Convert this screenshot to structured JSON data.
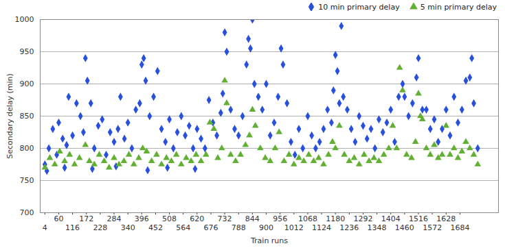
{
  "chart_data": {
    "type": "scatter",
    "x_label": "Train runs",
    "y_label": "Secondary delay (min)",
    "xlim": [
      -15,
      1840
    ],
    "xticks": [
      4,
      60,
      116,
      172,
      228,
      284,
      340,
      396,
      452,
      508,
      564,
      620,
      676,
      732,
      788,
      844,
      900,
      956,
      1012,
      1068,
      1124,
      1180,
      1236,
      1292,
      1348,
      1404,
      1460,
      1516,
      1572,
      1628,
      1684
    ],
    "ylim": [
      700,
      1000
    ],
    "yticks": [
      700,
      750,
      800,
      850,
      900,
      950,
      1000
    ],
    "grid": true,
    "legend": "top-right",
    "series": [
      {
        "name": "10 min primary delay",
        "color": "#2850dc",
        "marker": "diamond",
        "x": [
          4,
          12,
          20,
          36,
          52,
          60,
          76,
          84,
          92,
          100,
          116,
          132,
          148,
          160,
          168,
          176,
          190,
          196,
          204,
          220,
          236,
          252,
          268,
          284,
          292,
          300,
          310,
          326,
          340,
          356,
          372,
          388,
          396,
          404,
          412,
          420,
          428,
          444,
          460,
          476,
          492,
          500,
          508,
          524,
          540,
          556,
          572,
          588,
          604,
          612,
          620,
          636,
          652,
          668,
          684,
          700,
          716,
          724,
          732,
          740,
          756,
          772,
          788,
          804,
          820,
          828,
          836,
          844,
          852,
          868,
          884,
          900,
          916,
          932,
          948,
          960,
          968,
          984,
          1000,
          1016,
          1032,
          1048,
          1068,
          1084,
          1100,
          1116,
          1132,
          1148,
          1164,
          1172,
          1180,
          1188,
          1196,
          1204,
          1212,
          1228,
          1244,
          1260,
          1276,
          1292,
          1308,
          1324,
          1340,
          1356,
          1372,
          1388,
          1404,
          1420,
          1436,
          1452,
          1460,
          1476,
          1492,
          1508,
          1516,
          1532,
          1548,
          1564,
          1580,
          1596,
          1612,
          1628,
          1644,
          1660,
          1676,
          1692,
          1708,
          1724,
          1732,
          1740,
          1756
        ],
        "values": [
          775,
          765,
          800,
          830,
          790,
          840,
          815,
          770,
          805,
          880,
          820,
          870,
          850,
          825,
          940,
          905,
          870,
          768,
          800,
          835,
          845,
          790,
          825,
          810,
          772,
          830,
          880,
          815,
          840,
          800,
          860,
          870,
          930,
          940,
          905,
          766,
          850,
          880,
          920,
          830,
          810,
          770,
          845,
          800,
          825,
          850,
          820,
          835,
          800,
          768,
          830,
          815,
          800,
          875,
          840,
          820,
          855,
          885,
          980,
          950,
          860,
          830,
          820,
          850,
          930,
          970,
          955,
          1000,
          900,
          880,
          860,
          900,
          820,
          840,
          880,
          955,
          930,
          870,
          810,
          790,
          830,
          800,
          850,
          820,
          800,
          810,
          830,
          860,
          840,
          890,
          945,
          920,
          870,
          990,
          880,
          860,
          830,
          810,
          850,
          835,
          815,
          830,
          800,
          845,
          825,
          840,
          860,
          810,
          880,
          900,
          880,
          850,
          870,
          910,
          940,
          860,
          860,
          830,
          845,
          810,
          830,
          860,
          820,
          880,
          840,
          860,
          905,
          910,
          940,
          870,
          800
        ]
      },
      {
        "name": "5 min primary delay",
        "color": "#62b033",
        "marker": "triangle",
        "x": [
          4,
          24,
          44,
          64,
          84,
          104,
          124,
          144,
          168,
          184,
          204,
          224,
          244,
          264,
          284,
          304,
          324,
          344,
          364,
          384,
          400,
          416,
          436,
          456,
          476,
          496,
          516,
          536,
          556,
          576,
          596,
          616,
          636,
          656,
          672,
          688,
          704,
          720,
          732,
          740,
          756,
          776,
          796,
          816,
          832,
          844,
          856,
          876,
          896,
          916,
          936,
          952,
          972,
          992,
          1012,
          1032,
          1052,
          1072,
          1092,
          1112,
          1132,
          1152,
          1168,
          1180,
          1196,
          1216,
          1236,
          1256,
          1276,
          1296,
          1316,
          1336,
          1356,
          1376,
          1396,
          1412,
          1428,
          1440,
          1452,
          1468,
          1488,
          1504,
          1516,
          1524,
          1532,
          1548,
          1564,
          1580,
          1596,
          1612,
          1628,
          1644,
          1660,
          1676,
          1692,
          1708,
          1724,
          1740,
          1756
        ],
        "values": [
          770,
          785,
          775,
          795,
          780,
          790,
          775,
          785,
          805,
          780,
          775,
          790,
          780,
          770,
          785,
          775,
          780,
          790,
          775,
          785,
          800,
          795,
          780,
          790,
          775,
          785,
          780,
          790,
          775,
          785,
          780,
          790,
          780,
          790,
          840,
          830,
          785,
          800,
          905,
          870,
          790,
          780,
          790,
          805,
          820,
          860,
          835,
          800,
          785,
          780,
          800,
          825,
          780,
          790,
          775,
          785,
          780,
          790,
          780,
          785,
          775,
          790,
          810,
          800,
          835,
          790,
          780,
          785,
          775,
          790,
          780,
          785,
          780,
          790,
          800,
          835,
          800,
          925,
          890,
          790,
          785,
          810,
          885,
          850,
          845,
          800,
          790,
          805,
          785,
          790,
          835,
          790,
          800,
          785,
          795,
          810,
          800,
          790,
          775
        ]
      }
    ]
  }
}
